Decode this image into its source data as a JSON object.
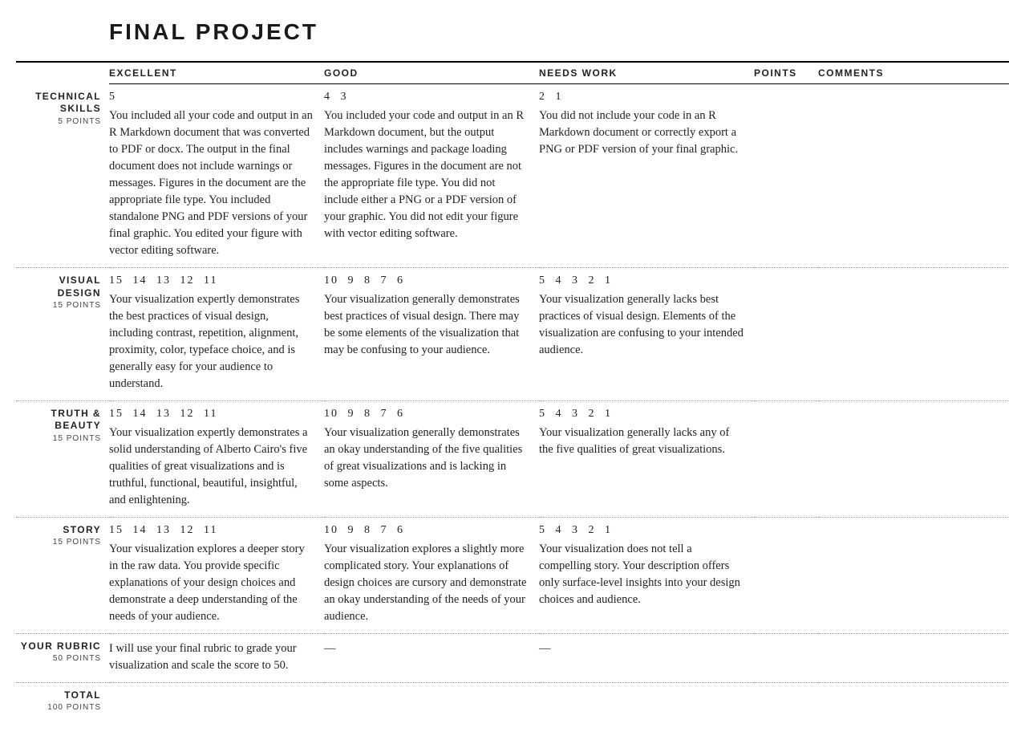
{
  "title": "FINAL PROJECT",
  "headers": {
    "excellent": "EXCELLENT",
    "good": "GOOD",
    "needs_work": "NEEDS WORK",
    "points": "POINTS",
    "comments": "COMMENTS"
  },
  "rows": [
    {
      "name": "TECHNICAL SKILLS",
      "points_label": "5 POINTS",
      "excellent_scores": "5",
      "excellent_desc": "You included all your code and output in an R Markdown document that was converted to PDF or docx. The output in the final document does not include warnings or messages. Figures in the document are the appropriate file type. You included standalone PNG and PDF versions of your final graphic. You edited your figure with vector editing software.",
      "good_scores": "4  3",
      "good_desc": "You included your code and output in an R Markdown document, but the output includes warnings and package loading messages. Figures in the document are not the appropriate file type. You did not include either a PNG or a PDF version of your graphic. You did not edit your figure with vector editing software.",
      "needs_scores": "2  1",
      "needs_desc": "You did not include your code in an R Markdown document or correctly export a PNG or PDF version of your final graphic."
    },
    {
      "name": "VISUAL DESIGN",
      "points_label": "15 POINTS",
      "excellent_scores": "15  14  13  12  11",
      "excellent_desc": "Your visualization expertly demonstrates the best practices of visual design, including contrast, repetition, alignment, proximity, color, typeface choice, and is generally easy for your audience to understand.",
      "good_scores": "10  9  8  7  6",
      "good_desc": "Your visualization generally demonstrates best practices of visual design. There may be some elements of the visualization that may be confusing to your audience.",
      "needs_scores": "5  4  3  2  1",
      "needs_desc": "Your visualization generally lacks best practices of visual design. Elements of the visualization are confusing to your intended audience."
    },
    {
      "name": "TRUTH & BEAUTY",
      "points_label": "15 POINTS",
      "excellent_scores": "15  14  13  12  11",
      "excellent_desc": "Your visualization expertly demonstrates a solid understanding of Alberto Cairo's five qualities of great visualizations and is truthful, functional, beautiful, insightful, and enlightening.",
      "good_scores": "10  9  8  7  6",
      "good_desc": "Your visualization generally demonstrates an okay understanding of the five qualities of great visualizations and is lacking in some aspects.",
      "needs_scores": "5  4  3  2  1",
      "needs_desc": "Your visualization generally lacks any of the five qualities of great visualizations."
    },
    {
      "name": "STORY",
      "points_label": "15 POINTS",
      "excellent_scores": "15  14  13  12  11",
      "excellent_desc": "Your visualization explores a deeper story in the raw data. You provide specific explanations of your design choices and demonstrate a deep understanding of the needs of your audience.",
      "good_scores": "10  9  8  7  6",
      "good_desc": "Your visualization explores a slightly more complicated story. Your explanations of design choices are cursory and demonstrate an okay understanding of the needs of your audience.",
      "needs_scores": "5  4  3  2  1",
      "needs_desc": "Your visualization does not tell a compelling story. Your description offers only surface-level insights into your design choices and audience."
    },
    {
      "name": "YOUR RUBRIC",
      "points_label": "50 POINTS",
      "excellent_scores": "",
      "excellent_desc": "I will use your final rubric to grade your visualization and scale the score to 50.",
      "good_scores": "",
      "good_desc": "—",
      "needs_scores": "",
      "needs_desc": "—"
    },
    {
      "name": "TOTAL",
      "points_label": "100 POINTS",
      "excellent_scores": "",
      "excellent_desc": "",
      "good_scores": "",
      "good_desc": "",
      "needs_scores": "",
      "needs_desc": ""
    }
  ]
}
